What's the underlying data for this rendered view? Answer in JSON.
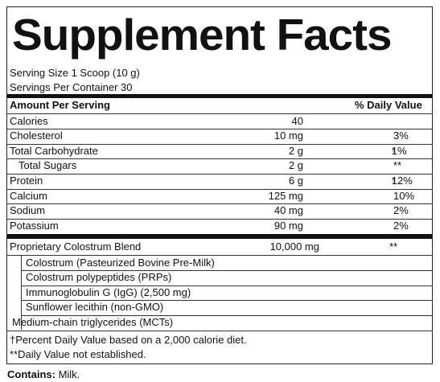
{
  "header": {
    "title": "Supplement Facts",
    "serving_size": "Serving Size 1 Scoop (10 g)",
    "servings_per_container": "Servings Per Container 30"
  },
  "table": {
    "columns": [
      "Amount Per Serving",
      "% Daily Value"
    ],
    "rows": [
      {
        "name": "Calories",
        "amount": "40",
        "dv": ""
      },
      {
        "name": "Cholesterol",
        "amount": "10 mg",
        "dv": "3%"
      },
      {
        "name": "Total Carbohydrate",
        "amount": "2 g",
        "dv": "1%",
        "note": "†"
      },
      {
        "name": "Total Sugars",
        "amount": "2 g",
        "dv": "**",
        "indent": true
      },
      {
        "name": "Protein",
        "amount": "6 g",
        "dv": "12%",
        "note": "†"
      },
      {
        "name": "Calcium",
        "amount": "125 mg",
        "dv": "10%"
      },
      {
        "name": "Sodium",
        "amount": "40 mg",
        "dv": "2%"
      },
      {
        "name": "Potassium",
        "amount": "90 mg",
        "dv": "2%"
      }
    ],
    "blend": {
      "name": "Proprietary Colostrum Blend",
      "amount": "10,000 mg",
      "dv": "**",
      "ingredients": [
        "Colostrum (Pasteurized Bovine Pre-Milk)",
        "Colostrum polypeptides (PRPs)",
        "Immunoglobulin G (IgG) (2,500 mg)",
        "Sunflower lecithin (non-GMO)",
        "Medium-chain triglycerides (MCTs)"
      ]
    }
  },
  "footnotes": [
    "†Percent Daily Value based on a 2,000 calorie diet.",
    "**Daily Value not established."
  ],
  "contains": {
    "label": "Contains:",
    "value": "Milk."
  }
}
